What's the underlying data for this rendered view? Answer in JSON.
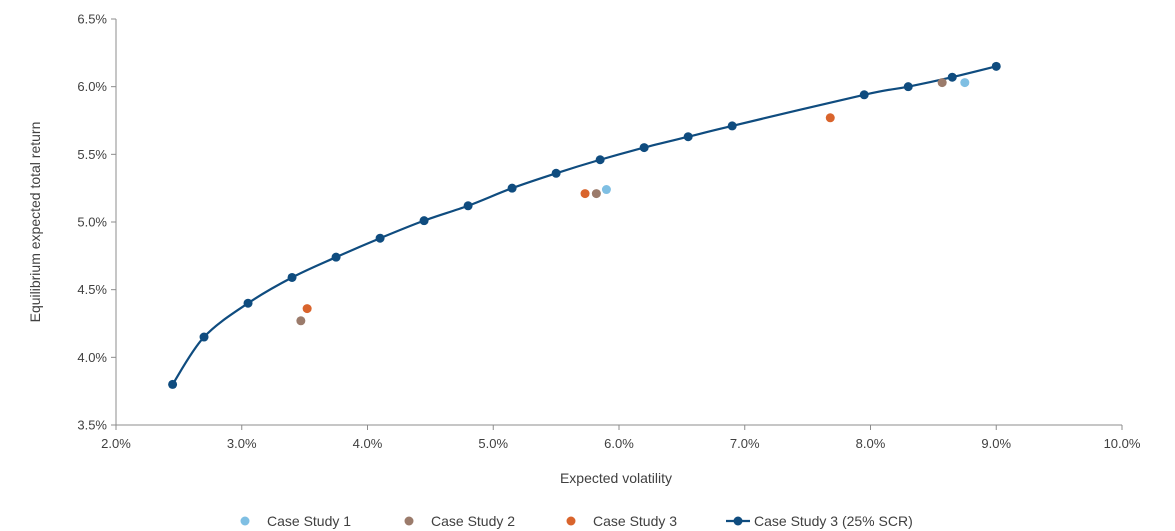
{
  "chart_data": {
    "type": "scatter",
    "title": "",
    "xlabel": "Expected volatility",
    "ylabel": "Equilibrium  expected total return",
    "xlim": [
      0.02,
      0.1
    ],
    "ylim": [
      0.035,
      0.065
    ],
    "x_ticks": [
      0.02,
      0.03,
      0.04,
      0.05,
      0.06,
      0.07,
      0.08,
      0.09,
      0.1
    ],
    "x_tick_labels": [
      "2.0%",
      "3.0%",
      "4.0%",
      "5.0%",
      "6.0%",
      "7.0%",
      "8.0%",
      "9.0%",
      "10.0%"
    ],
    "y_ticks": [
      0.035,
      0.04,
      0.045,
      0.05,
      0.055,
      0.06,
      0.065
    ],
    "y_tick_labels": [
      "3.5%",
      "4.0%",
      "4.5%",
      "5.0%",
      "5.5%",
      "6.0%",
      "6.5%"
    ],
    "grid": false,
    "legend_position": "bottom",
    "series": [
      {
        "name": "Case Study 1",
        "kind": "scatter",
        "color": "#7FBFE3",
        "x": [
          0.059,
          0.0875
        ],
        "y": [
          0.0524,
          0.0603
        ]
      },
      {
        "name": "Case Study 2",
        "kind": "scatter",
        "color": "#9B7B6B",
        "x": [
          0.0347,
          0.0582,
          0.0857
        ],
        "y": [
          0.0427,
          0.0521,
          0.0603
        ]
      },
      {
        "name": "Case Study 3",
        "kind": "scatter",
        "color": "#D9642C",
        "x": [
          0.0352,
          0.0573,
          0.0768
        ],
        "y": [
          0.0436,
          0.0521,
          0.0577
        ]
      },
      {
        "name": "Case Study 3 (25% SCR)",
        "kind": "line",
        "color": "#0F4C7F",
        "x": [
          0.0245,
          0.027,
          0.0305,
          0.034,
          0.0375,
          0.041,
          0.0445,
          0.048,
          0.0515,
          0.055,
          0.0585,
          0.062,
          0.0655,
          0.069,
          0.0795,
          0.083,
          0.0865,
          0.09
        ],
        "y": [
          0.038,
          0.0415,
          0.044,
          0.0459,
          0.0474,
          0.0488,
          0.0501,
          0.0512,
          0.0525,
          0.0536,
          0.0546,
          0.0555,
          0.0563,
          0.0571,
          0.0594,
          0.06,
          0.0607,
          0.0615
        ]
      }
    ]
  }
}
